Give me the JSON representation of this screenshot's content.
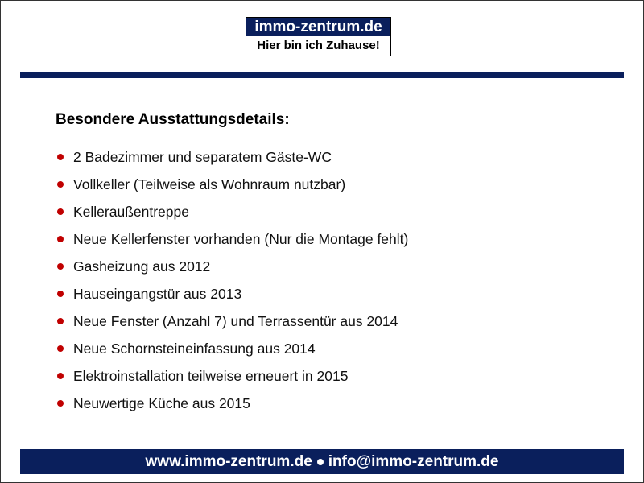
{
  "logo": {
    "title": "immo-zentrum.de",
    "slogan": "Hier bin ich Zuhause!"
  },
  "heading": "Besondere Ausstattungsdetails:",
  "bullet_color": "#c00000",
  "brand_color": "#0a1f5c",
  "items": [
    "2 Badezimmer und separatem Gäste-WC",
    "Vollkeller (Teilweise als Wohnraum nutzbar)",
    "Kelleraußentreppe",
    "Neue Kellerfenster vorhanden (Nur die Montage fehlt)",
    "Gasheizung aus 2012",
    "Hauseingangstür aus 2013",
    "Neue Fenster (Anzahl 7) und Terrassentür aus 2014",
    "Neue Schornsteineinfassung aus 2014",
    "Elektroinstallation teilweise erneuert in 2015",
    "Neuwertige Küche aus 2015"
  ],
  "footer": {
    "website": "www.immo-zentrum.de",
    "email": "info@immo-zentrum.de"
  }
}
